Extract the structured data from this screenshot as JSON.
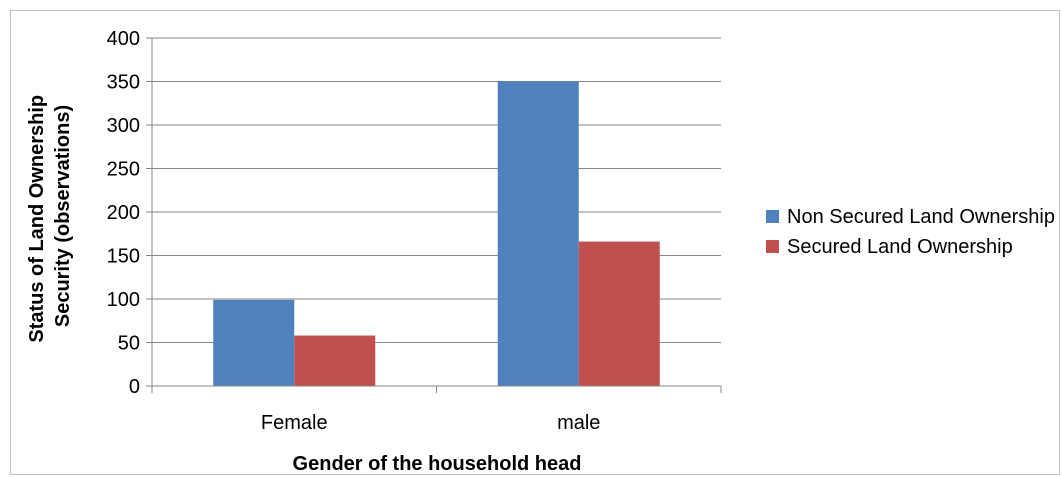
{
  "chart_data": {
    "type": "bar",
    "categories": [
      "Female",
      "male"
    ],
    "series": [
      {
        "name": "Non Secured Land Ownership",
        "values": [
          99,
          350
        ],
        "color": "#4f81bd"
      },
      {
        "name": "Secured Land Ownership",
        "values": [
          58,
          166
        ],
        "color": "#c0504d"
      }
    ],
    "xlabel": "Gender of the household head",
    "ylabel_lines": [
      "Status of Land Ownership",
      "Security (observations)"
    ],
    "ylim": [
      0,
      400
    ],
    "yticks": [
      "0",
      "50",
      "100",
      "150",
      "200",
      "250",
      "300",
      "350",
      "400"
    ],
    "grid": true,
    "legend_position": "right"
  }
}
